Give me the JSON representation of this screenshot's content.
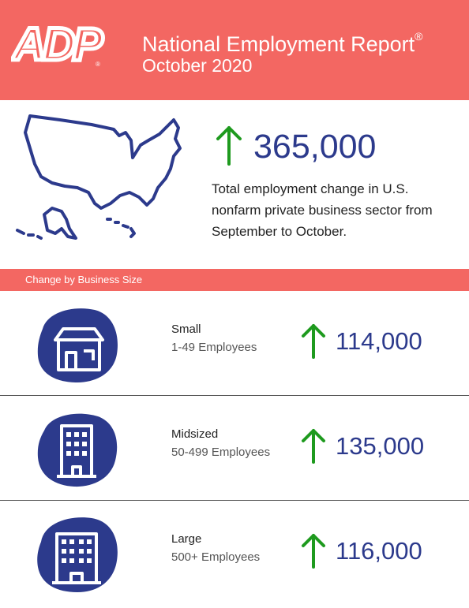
{
  "header": {
    "logo_text": "ADP",
    "title": "National Employment Report",
    "title_mark": "®",
    "subtitle": "October 2020",
    "bg_color": "#f36762"
  },
  "summary": {
    "map_icon": "usa-map-icon",
    "arrow_icon": "arrow-up-icon",
    "value": "365,000",
    "description": "Total employment change in U.S. nonfarm private business sector from September to October."
  },
  "section": {
    "label": "Change by Business Size"
  },
  "business_sizes": [
    {
      "name": "Small",
      "range": "1-49 Employees",
      "value": "114,000",
      "icon": "small-business-icon"
    },
    {
      "name": "Midsized",
      "range": "50-499 Employees",
      "value": "135,000",
      "icon": "midsized-building-icon"
    },
    {
      "name": "Large",
      "range": "500+ Employees",
      "value": "116,000",
      "icon": "large-building-icon"
    }
  ],
  "colors": {
    "accent_red": "#f36762",
    "navy": "#2c3a8c",
    "arrow_green": "#1e9a1e"
  }
}
